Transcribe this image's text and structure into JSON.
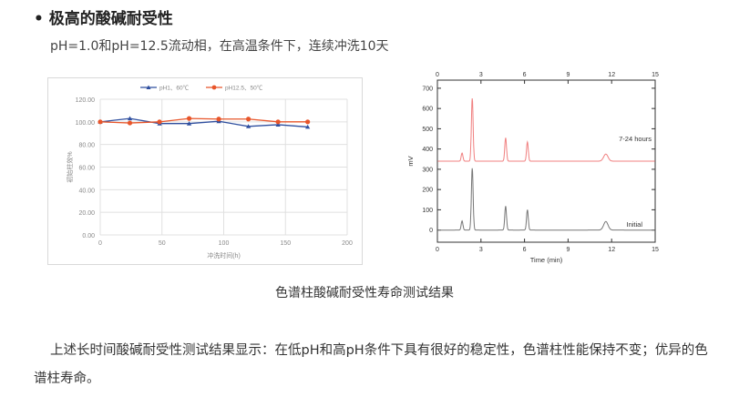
{
  "heading": {
    "bullet": "•",
    "title": "极高的酸碱耐受性",
    "subtitle": "pH=1.0和pH=12.5流动相，在高温条件下，连续冲洗10天"
  },
  "caption": "色谱柱酸碱耐受性寿命测试结果",
  "paragraph": "上述长时间酸碱耐受性测试结果显示：在低pH和高pH条件下具有很好的稳定性，色谱柱性能保持不变；优异的色谱柱寿命。",
  "chart_data": [
    {
      "type": "line",
      "xlabel": "冲洗时间(h)",
      "ylabel": "初始柱效%",
      "xlim": [
        0,
        200
      ],
      "ylim": [
        0,
        120
      ],
      "xticks": [
        "0",
        "50",
        "100",
        "150",
        "200"
      ],
      "yticks": [
        "0.00",
        "20.00",
        "40.00",
        "60.00",
        "80.00",
        "100.00",
        "120.00"
      ],
      "grid": true,
      "legend": "top",
      "x": [
        0,
        24,
        48,
        72,
        96,
        120,
        144,
        168
      ],
      "series": [
        {
          "name": "pH1、60℃",
          "color": "#2f4f9f",
          "marker": "triangle",
          "values": [
            100,
            103,
            98.5,
            98.5,
            100.5,
            96,
            97.5,
            95.5
          ]
        },
        {
          "name": "pH12.5、50℃",
          "color": "#e8552a",
          "marker": "circle",
          "values": [
            100,
            99,
            100,
            103,
            102.5,
            102.5,
            100,
            100
          ]
        }
      ]
    },
    {
      "type": "line",
      "xlabel": "Time (min)",
      "ylabel": "mV",
      "xlim": [
        0,
        15
      ],
      "ylim": [
        -60,
        740
      ],
      "xticks": [
        "0",
        "3",
        "6",
        "9",
        "12",
        "15"
      ],
      "yticks": [
        "0",
        "100",
        "200",
        "300",
        "400",
        "500",
        "600",
        "700"
      ],
      "series": [
        {
          "name": "7-24 hours",
          "color": "#f08080",
          "baseline": 340,
          "peaks": [
            {
              "t": 1.7,
              "mv": 380
            },
            {
              "t": 2.4,
              "mv": 650
            },
            {
              "t": 4.7,
              "mv": 455
            },
            {
              "t": 6.2,
              "mv": 435
            },
            {
              "t": 11.6,
              "mv": 375
            }
          ]
        },
        {
          "name": "Initial",
          "color": "#777777",
          "baseline": 0,
          "peaks": [
            {
              "t": 1.7,
              "mv": 45
            },
            {
              "t": 2.4,
              "mv": 305
            },
            {
              "t": 4.7,
              "mv": 118
            },
            {
              "t": 6.2,
              "mv": 100
            },
            {
              "t": 11.6,
              "mv": 42
            }
          ]
        }
      ]
    }
  ]
}
